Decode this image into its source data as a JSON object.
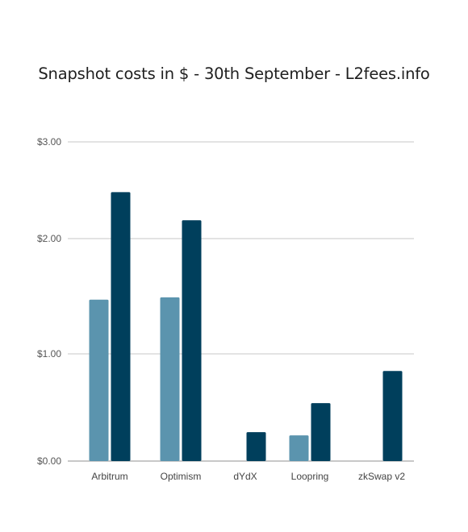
{
  "chart_data": {
    "type": "bar",
    "title": "Snapshot costs in $ - 30th September - L2fees.info",
    "categories": [
      "Arbitrum",
      "Optimism",
      "dYdX",
      "Loopring",
      "zkSwap v2"
    ],
    "series": [
      {
        "values": [
          1.47,
          1.49,
          null,
          0.24,
          null
        ],
        "color": "#5b94ae"
      },
      {
        "values": [
          2.48,
          2.19,
          0.27,
          0.54,
          0.84
        ],
        "color": "#003f5c"
      }
    ],
    "yticks": [
      {
        "value": 0,
        "label": "$0.00"
      },
      {
        "value": 1,
        "label": "$1.00"
      },
      {
        "value": 2,
        "label": "$2.00"
      },
      {
        "value": 3,
        "label": "$3.00"
      }
    ],
    "ylim": [
      0,
      3
    ],
    "grid": true
  }
}
